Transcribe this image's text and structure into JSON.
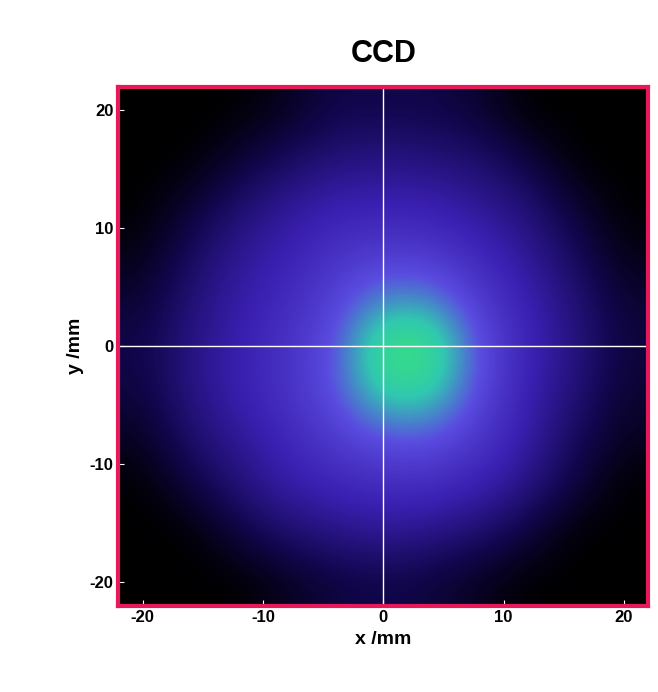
{
  "chart_data": {
    "type": "heatmap",
    "title": "CCD",
    "x_label": "x /mm",
    "y_label": "y /mm",
    "xlim": [
      -22,
      22
    ],
    "ylim": [
      -22,
      22
    ],
    "xticks": [
      -20,
      -10,
      0,
      10,
      20
    ],
    "yticks": [
      -20,
      -10,
      0,
      10,
      20
    ],
    "x_edges": [
      -22,
      -18,
      -14,
      -10,
      -6,
      -2,
      2,
      6,
      10,
      14,
      18,
      22
    ],
    "y_edges": [
      22,
      18,
      14,
      10,
      6,
      2,
      -2,
      -6,
      -10,
      -14,
      -18,
      -22
    ],
    "color_range": [
      0,
      1
    ],
    "crosshair": {
      "x": 0,
      "y": 0
    },
    "cells": [
      [
        0,
        0,
        0,
        0.05,
        0.12,
        0.12,
        0.12,
        0.08,
        0,
        0,
        0
      ],
      [
        0,
        0,
        0.08,
        0.15,
        0.2,
        0.22,
        0.2,
        0.18,
        0.1,
        0,
        0
      ],
      [
        0,
        0.08,
        0.18,
        0.25,
        0.3,
        0.3,
        0.3,
        0.25,
        0.2,
        0.08,
        0
      ],
      [
        0.03,
        0.15,
        0.25,
        0.3,
        0.38,
        0.42,
        0.4,
        0.33,
        0.25,
        0.15,
        0.03
      ],
      [
        0.08,
        0.2,
        0.28,
        0.35,
        0.45,
        0.6,
        0.6,
        0.42,
        0.3,
        0.2,
        0.08
      ],
      [
        0.12,
        0.22,
        0.3,
        0.38,
        0.5,
        0.85,
        0.85,
        0.5,
        0.32,
        0.22,
        0.1
      ],
      [
        0.1,
        0.22,
        0.3,
        0.38,
        0.5,
        0.75,
        0.75,
        0.48,
        0.3,
        0.2,
        0.08
      ],
      [
        0.05,
        0.18,
        0.25,
        0.33,
        0.42,
        0.5,
        0.5,
        0.4,
        0.28,
        0.15,
        0.05
      ],
      [
        0,
        0.1,
        0.2,
        0.28,
        0.32,
        0.35,
        0.35,
        0.3,
        0.22,
        0.1,
        0
      ],
      [
        0,
        0,
        0.1,
        0.18,
        0.22,
        0.25,
        0.22,
        0.18,
        0.1,
        0,
        0
      ],
      [
        0,
        0,
        0,
        0.05,
        0.1,
        0.12,
        0.1,
        0.05,
        0,
        0,
        0
      ]
    ]
  }
}
